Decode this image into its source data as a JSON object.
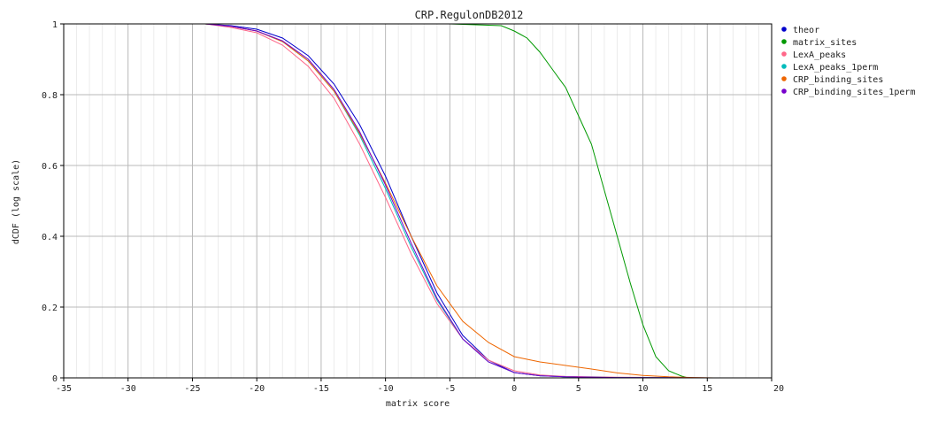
{
  "chart_data": {
    "type": "line",
    "title": "CRP.RegulonDB2012",
    "xlabel": "matrix score",
    "ylabel": "dCDF (log scale)",
    "xlim": [
      -35,
      20
    ],
    "ylim": [
      0,
      1
    ],
    "x_ticks": [
      "-35",
      "-30",
      "-25",
      "-20",
      "-15",
      "-10",
      "-5",
      "0",
      "5",
      "10",
      "15",
      "20"
    ],
    "y_ticks": [
      "0",
      "0.2",
      "0.4",
      "0.6",
      "0.8",
      "1"
    ],
    "grid": true,
    "legend_position": "right",
    "series": [
      {
        "name": "theor",
        "color": "#0000cc",
        "x": [
          -32,
          -24,
          -22,
          -20,
          -18,
          -16,
          -14,
          -12,
          -10,
          -8,
          -6,
          -4,
          -2,
          0,
          2,
          4,
          8,
          12,
          15.5
        ],
        "y": [
          1.0,
          1.0,
          0.995,
          0.985,
          0.96,
          0.91,
          0.83,
          0.715,
          0.57,
          0.4,
          0.24,
          0.12,
          0.05,
          0.015,
          0.006,
          0.003,
          0.001,
          0.0005,
          0
        ]
      },
      {
        "name": "matrix_sites",
        "color": "#009900",
        "x": [
          -32,
          -10,
          -5,
          -1,
          0,
          0.5,
          1,
          2,
          3,
          4,
          5,
          6,
          7,
          8,
          9,
          10,
          11,
          12,
          13,
          13.5
        ],
        "y": [
          1.0,
          1.0,
          1.0,
          0.995,
          0.98,
          0.97,
          0.96,
          0.92,
          0.87,
          0.82,
          0.74,
          0.66,
          0.53,
          0.4,
          0.27,
          0.15,
          0.06,
          0.02,
          0.005,
          0
        ]
      },
      {
        "name": "LexA_peaks",
        "color": "#ff6688",
        "x": [
          -32,
          -24,
          -22,
          -20,
          -18,
          -16,
          -14,
          -12,
          -10,
          -8,
          -6,
          -4,
          -2,
          0,
          2,
          4,
          8,
          12,
          15
        ],
        "y": [
          1.0,
          1.0,
          0.99,
          0.975,
          0.94,
          0.88,
          0.79,
          0.66,
          0.51,
          0.35,
          0.21,
          0.11,
          0.05,
          0.02,
          0.008,
          0.004,
          0.002,
          0.001,
          0
        ]
      },
      {
        "name": "LexA_peaks_1perm",
        "color": "#00bbbb",
        "x": [
          -32,
          -24,
          -22,
          -20,
          -18,
          -16,
          -14,
          -12,
          -10,
          -8,
          -6,
          -4,
          -2,
          0,
          2,
          4,
          8,
          12,
          15
        ],
        "y": [
          1.0,
          1.0,
          0.993,
          0.98,
          0.95,
          0.895,
          0.81,
          0.685,
          0.535,
          0.37,
          0.22,
          0.11,
          0.045,
          0.015,
          0.006,
          0.003,
          0.001,
          0.0005,
          0
        ]
      },
      {
        "name": "CRP_binding_sites",
        "color": "#ee6600",
        "x": [
          -32,
          -24,
          -22,
          -20,
          -18,
          -16,
          -14,
          -12,
          -10,
          -8,
          -6,
          -4,
          -2,
          0,
          2,
          4,
          6,
          8,
          10,
          12,
          14,
          15.5
        ],
        "y": [
          1.0,
          1.0,
          0.993,
          0.98,
          0.95,
          0.895,
          0.81,
          0.69,
          0.55,
          0.4,
          0.26,
          0.16,
          0.1,
          0.06,
          0.045,
          0.035,
          0.025,
          0.014,
          0.007,
          0.003,
          0.001,
          0
        ]
      },
      {
        "name": "CRP_binding_sites_1perm",
        "color": "#7700cc",
        "x": [
          -32,
          -24,
          -22,
          -20,
          -18,
          -16,
          -14,
          -12,
          -10,
          -8,
          -6,
          -4,
          -2,
          0,
          2,
          4,
          8,
          12,
          15
        ],
        "y": [
          1.0,
          1.0,
          0.993,
          0.98,
          0.952,
          0.9,
          0.815,
          0.695,
          0.545,
          0.38,
          0.225,
          0.11,
          0.045,
          0.015,
          0.006,
          0.003,
          0.001,
          0.0005,
          0
        ]
      }
    ]
  }
}
